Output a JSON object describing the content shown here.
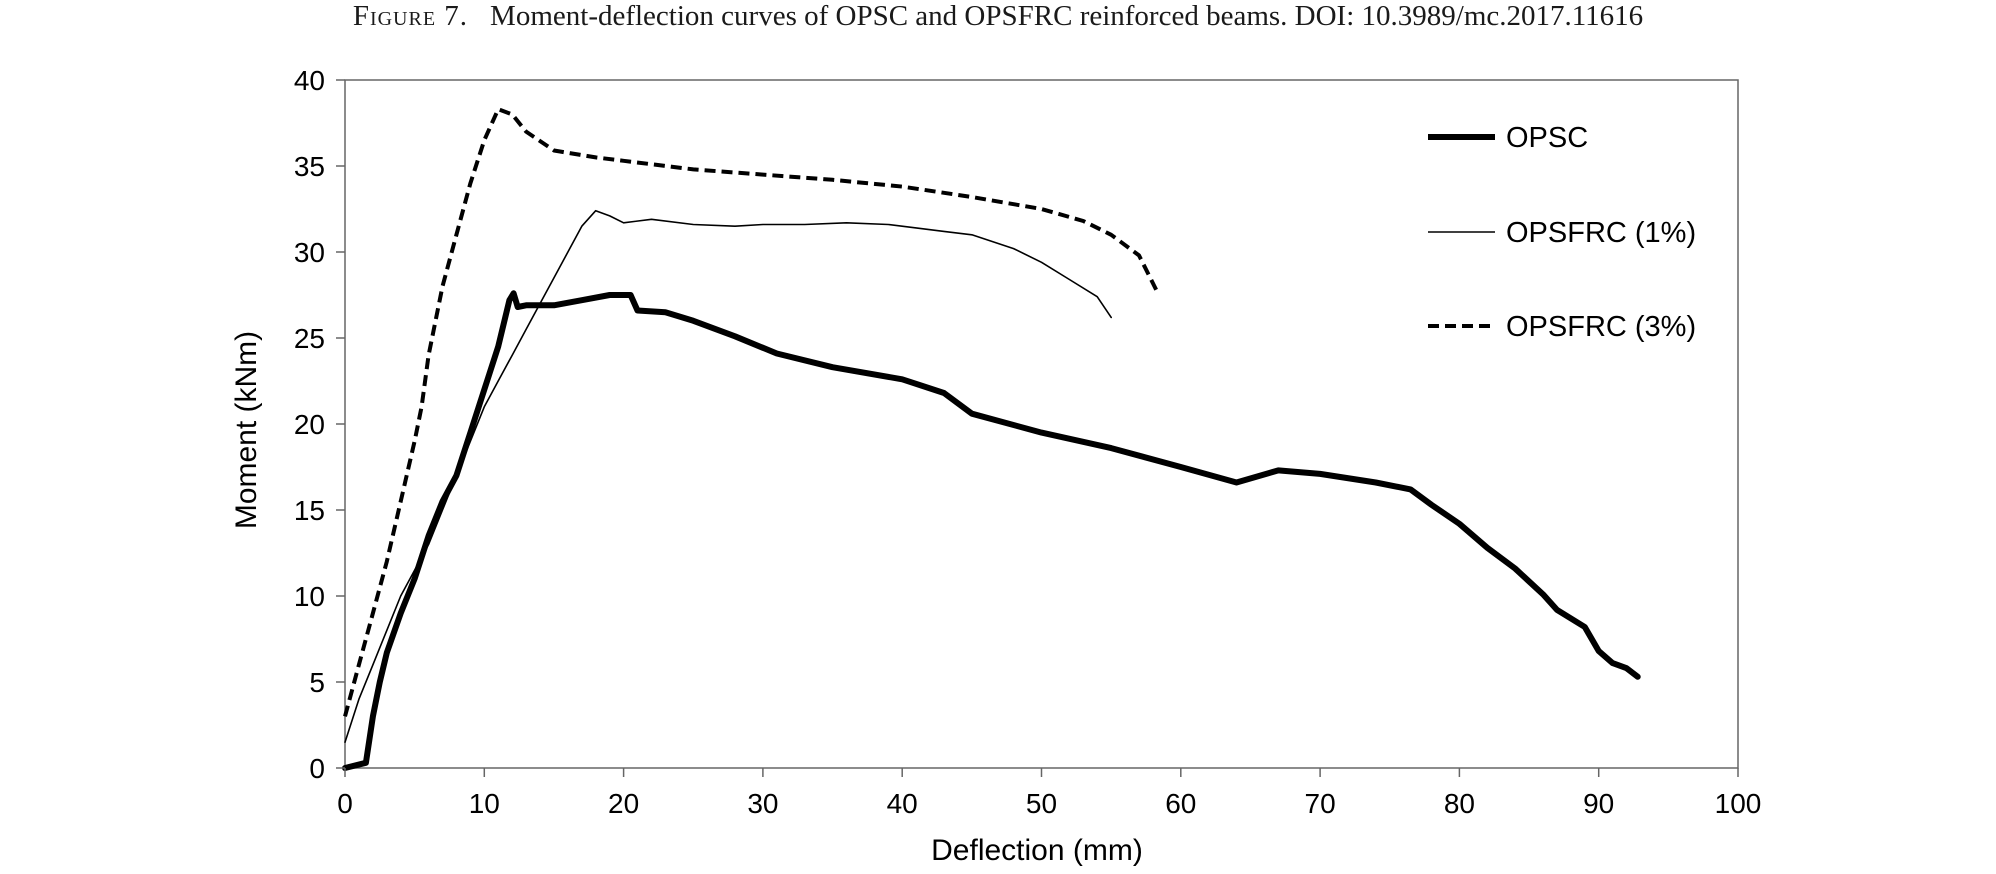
{
  "caption": {
    "figure_label": "Figure 7.",
    "text": "Moment-deflection curves of OPSC and OPSFRC reinforced beams. DOI: 10.3989/mc.2017.11616"
  },
  "chart_data": {
    "type": "line",
    "title": "",
    "xlabel": "Deflection (mm)",
    "ylabel": "Moment (kNm)",
    "xlim": [
      0,
      100
    ],
    "ylim": [
      0,
      40
    ],
    "xticks": [
      0,
      10,
      20,
      30,
      40,
      50,
      60,
      70,
      80,
      90,
      100
    ],
    "yticks": [
      0,
      5,
      10,
      15,
      20,
      25,
      30,
      35,
      40
    ],
    "grid": false,
    "legend_position": "top-right",
    "series": [
      {
        "name": "OPSC",
        "style": "thick-solid",
        "color": "#000000",
        "points": [
          [
            0,
            0
          ],
          [
            1.5,
            0.3
          ],
          [
            2,
            3
          ],
          [
            2.5,
            5
          ],
          [
            3,
            6.7
          ],
          [
            4,
            9
          ],
          [
            5,
            11
          ],
          [
            6,
            13.5
          ],
          [
            7,
            15.5
          ],
          [
            8,
            17
          ],
          [
            9,
            19.5
          ],
          [
            10,
            22
          ],
          [
            11,
            24.5
          ],
          [
            11.8,
            27.2
          ],
          [
            12.1,
            27.6
          ],
          [
            12.4,
            26.8
          ],
          [
            13,
            26.9
          ],
          [
            15,
            26.9
          ],
          [
            17,
            27.2
          ],
          [
            19,
            27.5
          ],
          [
            20.5,
            27.5
          ],
          [
            21,
            26.6
          ],
          [
            23,
            26.5
          ],
          [
            25,
            26
          ],
          [
            28,
            25.1
          ],
          [
            31,
            24.1
          ],
          [
            35,
            23.3
          ],
          [
            40,
            22.6
          ],
          [
            43,
            21.8
          ],
          [
            45,
            20.6
          ],
          [
            50,
            19.5
          ],
          [
            55,
            18.6
          ],
          [
            60,
            17.5
          ],
          [
            64,
            16.6
          ],
          [
            67,
            17.3
          ],
          [
            70,
            17.1
          ],
          [
            74,
            16.6
          ],
          [
            76.5,
            16.2
          ],
          [
            78,
            15.3
          ],
          [
            80,
            14.2
          ],
          [
            82,
            12.8
          ],
          [
            84,
            11.6
          ],
          [
            86,
            10.1
          ],
          [
            87,
            9.2
          ],
          [
            89,
            8.2
          ],
          [
            90,
            6.8
          ],
          [
            91,
            6.1
          ],
          [
            92,
            5.8
          ],
          [
            92.8,
            5.3
          ]
        ]
      },
      {
        "name": "OPSFRC (1%)",
        "style": "thin-solid",
        "color": "#000000",
        "points": [
          [
            0,
            1.5
          ],
          [
            1,
            4
          ],
          [
            2,
            6
          ],
          [
            3,
            8
          ],
          [
            4,
            10
          ],
          [
            5,
            11.5
          ],
          [
            6,
            13
          ],
          [
            7,
            15
          ],
          [
            8,
            17
          ],
          [
            9,
            19
          ],
          [
            10,
            21
          ],
          [
            11,
            22.5
          ],
          [
            12,
            24
          ],
          [
            13,
            25.5
          ],
          [
            14,
            27
          ],
          [
            15,
            28.5
          ],
          [
            16,
            30
          ],
          [
            17,
            31.5
          ],
          [
            18,
            32.4
          ],
          [
            19,
            32.1
          ],
          [
            20,
            31.7
          ],
          [
            22,
            31.9
          ],
          [
            25,
            31.6
          ],
          [
            28,
            31.5
          ],
          [
            30,
            31.6
          ],
          [
            33,
            31.6
          ],
          [
            36,
            31.7
          ],
          [
            39,
            31.6
          ],
          [
            41,
            31.4
          ],
          [
            43,
            31.2
          ],
          [
            45,
            31
          ],
          [
            48,
            30.2
          ],
          [
            50,
            29.4
          ],
          [
            52,
            28.4
          ],
          [
            54,
            27.4
          ],
          [
            55,
            26.2
          ]
        ]
      },
      {
        "name": "OPSFRC (3%)",
        "style": "dashed",
        "color": "#000000",
        "points": [
          [
            0,
            3
          ],
          [
            1,
            6
          ],
          [
            2,
            9
          ],
          [
            3,
            12
          ],
          [
            4,
            15.5
          ],
          [
            5,
            19
          ],
          [
            5.5,
            21
          ],
          [
            6,
            24
          ],
          [
            7,
            28
          ],
          [
            8,
            31
          ],
          [
            9,
            34
          ],
          [
            10,
            36.5
          ],
          [
            11,
            38.3
          ],
          [
            12,
            38
          ],
          [
            13,
            37
          ],
          [
            15,
            35.9
          ],
          [
            18,
            35.5
          ],
          [
            20,
            35.3
          ],
          [
            25,
            34.8
          ],
          [
            30,
            34.5
          ],
          [
            35,
            34.2
          ],
          [
            40,
            33.8
          ],
          [
            45,
            33.2
          ],
          [
            50,
            32.5
          ],
          [
            53,
            31.8
          ],
          [
            55,
            31
          ],
          [
            57,
            29.8
          ],
          [
            58.3,
            27.7
          ]
        ]
      }
    ]
  }
}
